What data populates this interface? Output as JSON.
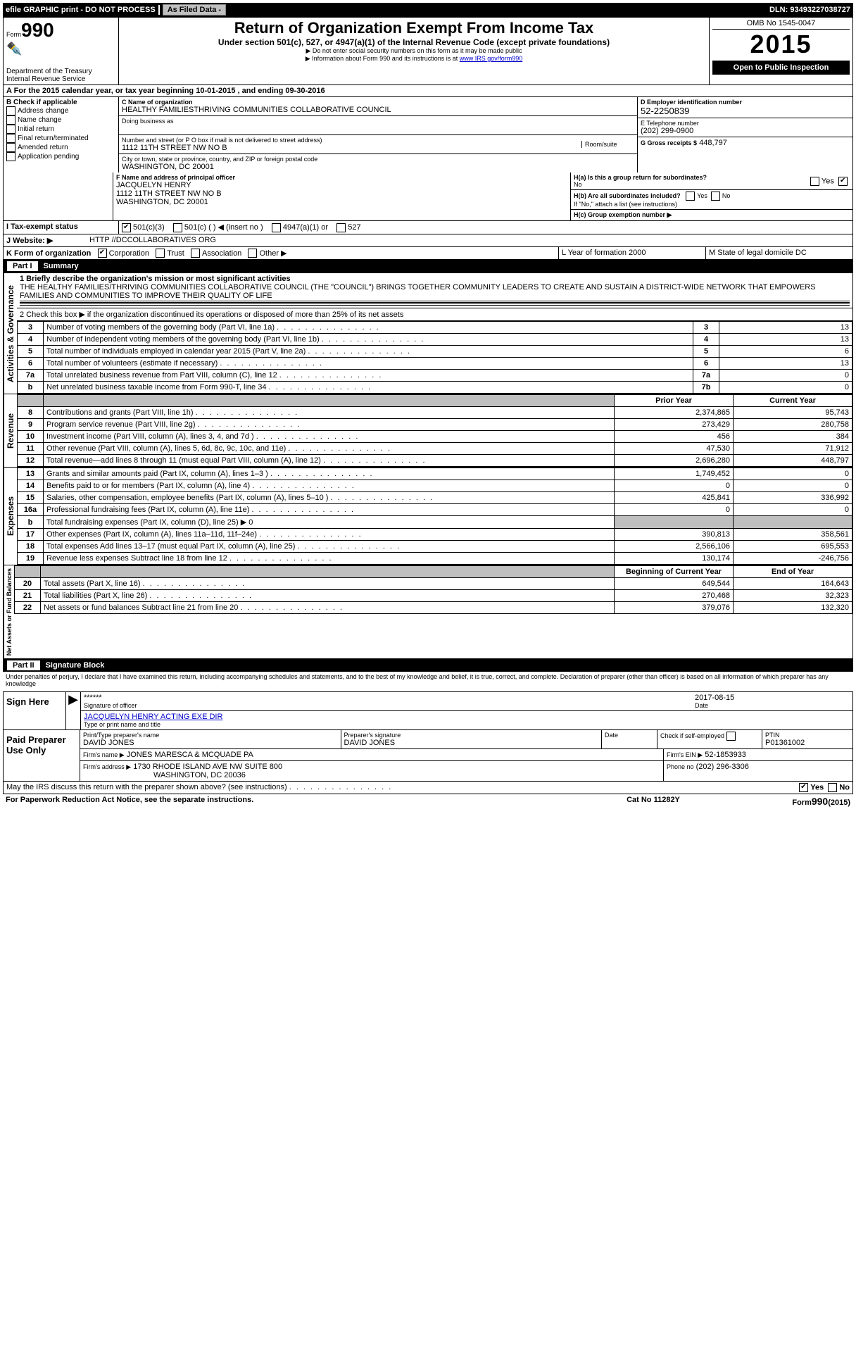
{
  "topbar": {
    "efile": "efile GRAPHIC print - DO NOT PROCESS",
    "asfiled": "As Filed Data -",
    "dln_label": "DLN:",
    "dln": "93493227038727"
  },
  "header": {
    "form_label": "Form",
    "form_no": "990",
    "dept1": "Department of the Treasury",
    "dept2": "Internal Revenue Service",
    "title": "Return of Organization Exempt From Income Tax",
    "subtitle": "Under section 501(c), 527, or 4947(a)(1) of the Internal Revenue Code (except private foundations)",
    "note1": "▶ Do not enter social security numbers on this form as it may be made public",
    "note2_pre": "▶ Information about Form 990 and its instructions is at ",
    "note2_link": "www IRS gov/form990",
    "omb": "OMB No 1545-0047",
    "year": "2015",
    "open": "Open to Public Inspection"
  },
  "A": {
    "text_pre": "A  For the 2015 calendar year, or tax year beginning ",
    "begin": "10-01-2015",
    "mid": " , and ending ",
    "end": "09-30-2016"
  },
  "B": {
    "header": "B Check if applicable",
    "items": [
      "Address change",
      "Name change",
      "Initial return",
      "Final return/terminated",
      "Amended return",
      "Application pending"
    ]
  },
  "C": {
    "name_label": "C Name of organization",
    "name": "HEALTHY FAMILIESTHRIVING COMMUNITIES COLLABORATIVE COUNCIL",
    "dba_label": "Doing business as",
    "addr_label": "Number and street (or P O box if mail is not delivered to street address)",
    "room_label": "Room/suite",
    "addr": "1112 11TH STREET NW NO B",
    "city_label": "City or town, state or province, country, and ZIP or foreign postal code",
    "city": "WASHINGTON, DC 20001"
  },
  "D": {
    "label": "D Employer identification number",
    "value": "52-2250839"
  },
  "E": {
    "label": "E Telephone number",
    "value": "(202) 299-0900"
  },
  "G": {
    "label": "G Gross receipts $",
    "value": "448,797"
  },
  "F": {
    "label": "F Name and address of principal officer",
    "name": "JACQUELYN HENRY",
    "addr1": "1112 11TH STREET NW NO B",
    "addr2": "WASHINGTON, DC 20001"
  },
  "H": {
    "a": "H(a) Is this a group return for subordinates?",
    "a_no": "No",
    "a_yes": "Yes",
    "b": "H(b) Are all subordinates included?",
    "b_yes": "Yes",
    "b_no": "No",
    "b_note": "If \"No,\" attach a list (see instructions)",
    "c": "H(c)  Group exemption number ▶"
  },
  "I": {
    "label": "I  Tax-exempt status",
    "c501c3": "501(c)(3)",
    "c501c": "501(c) (  ) ◀ (insert no )",
    "c4947": "4947(a)(1) or",
    "c527": "527"
  },
  "J": {
    "label": "J  Website: ▶",
    "value": "HTTP //DCCOLLABORATIVES ORG"
  },
  "K": {
    "label": "K Form of organization",
    "corp": "Corporation",
    "trust": "Trust",
    "assoc": "Association",
    "other": "Other ▶"
  },
  "L": {
    "label": "L Year of formation  2000"
  },
  "M": {
    "label": "M State of legal domicile  DC"
  },
  "partI": {
    "title": "Part I",
    "summary": "Summary",
    "line1": "1 Briefly describe the organization's mission or most significant activities",
    "mission": "THE HEALTHY FAMILIES/THRIVING COMMUNITIES COLLABORATIVE COUNCIL (THE \"COUNCIL\") BRINGS TOGETHER COMMUNITY LEADERS TO CREATE AND SUSTAIN A DISTRICT-WIDE NETWORK THAT EMPOWERS FAMILIES AND COMMUNITIES TO IMPROVE THEIR QUALITY OF LIFE",
    "line2": "2 Check this box ▶   if the organization discontinued its operations or disposed of more than 25% of its net assets",
    "gov_label": "Activities & Governance",
    "rev_label": "Revenue",
    "exp_label": "Expenses",
    "net_label": "Net Assets or Fund Balances",
    "prior": "Prior Year",
    "current": "Current Year",
    "begin": "Beginning of Current Year",
    "end_year": "End of Year",
    "rows_top": [
      {
        "n": "3",
        "t": "Number of voting members of the governing body (Part VI, line 1a)",
        "box": "3",
        "v": "13"
      },
      {
        "n": "4",
        "t": "Number of independent voting members of the governing body (Part VI, line 1b)",
        "box": "4",
        "v": "13"
      },
      {
        "n": "5",
        "t": "Total number of individuals employed in calendar year 2015 (Part V, line 2a)",
        "box": "5",
        "v": "6"
      },
      {
        "n": "6",
        "t": "Total number of volunteers (estimate if necessary)",
        "box": "6",
        "v": "13"
      },
      {
        "n": "7a",
        "t": "Total unrelated business revenue from Part VIII, column (C), line 12",
        "box": "7a",
        "v": "0"
      },
      {
        "n": "b",
        "t": "Net unrelated business taxable income from Form 990-T, line 34",
        "box": "7b",
        "v": "0"
      }
    ],
    "rev_rows": [
      {
        "n": "8",
        "t": "Contributions and grants (Part VIII, line 1h)",
        "p": "2,374,865",
        "c": "95,743"
      },
      {
        "n": "9",
        "t": "Program service revenue (Part VIII, line 2g)",
        "p": "273,429",
        "c": "280,758"
      },
      {
        "n": "10",
        "t": "Investment income (Part VIII, column (A), lines 3, 4, and 7d )",
        "p": "456",
        "c": "384"
      },
      {
        "n": "11",
        "t": "Other revenue (Part VIII, column (A), lines 5, 6d, 8c, 9c, 10c, and 11e)",
        "p": "47,530",
        "c": "71,912"
      },
      {
        "n": "12",
        "t": "Total revenue—add lines 8 through 11 (must equal Part VIII, column (A), line 12)",
        "p": "2,696,280",
        "c": "448,797"
      }
    ],
    "exp_rows": [
      {
        "n": "13",
        "t": "Grants and similar amounts paid (Part IX, column (A), lines 1–3 )",
        "p": "1,749,452",
        "c": "0"
      },
      {
        "n": "14",
        "t": "Benefits paid to or for members (Part IX, column (A), line 4)",
        "p": "0",
        "c": "0"
      },
      {
        "n": "15",
        "t": "Salaries, other compensation, employee benefits (Part IX, column (A), lines 5–10 )",
        "p": "425,841",
        "c": "336,992"
      },
      {
        "n": "16a",
        "t": "Professional fundraising fees (Part IX, column (A), line 11e)",
        "p": "0",
        "c": "0"
      },
      {
        "n": "b",
        "t": "Total fundraising expenses (Part IX, column (D), line 25) ▶ 0",
        "p": "",
        "c": "",
        "shaded": true
      },
      {
        "n": "17",
        "t": "Other expenses (Part IX, column (A), lines 11a–11d, 11f–24e)",
        "p": "390,813",
        "c": "358,561"
      },
      {
        "n": "18",
        "t": "Total expenses Add lines 13–17 (must equal Part IX, column (A), line 25)",
        "p": "2,566,106",
        "c": "695,553"
      },
      {
        "n": "19",
        "t": "Revenue less expenses Subtract line 18 from line 12",
        "p": "130,174",
        "c": "-246,756"
      }
    ],
    "net_rows": [
      {
        "n": "20",
        "t": "Total assets (Part X, line 16)",
        "p": "649,544",
        "c": "164,643"
      },
      {
        "n": "21",
        "t": "Total liabilities (Part X, line 26)",
        "p": "270,468",
        "c": "32,323"
      },
      {
        "n": "22",
        "t": "Net assets or fund balances Subtract line 21 from line 20",
        "p": "379,076",
        "c": "132,320"
      }
    ]
  },
  "partII": {
    "title": "Part II",
    "label": "Signature Block",
    "decl": "Under penalties of perjury, I declare that I have examined this return, including accompanying schedules and statements, and to the best of my knowledge and belief, it is true, correct, and complete. Declaration of preparer (other than officer) is based on all information of which preparer has any knowledge",
    "sign_here": "Sign Here",
    "stars": "******",
    "sig_officer": "Signature of officer",
    "date_label": "Date",
    "sig_date": "2017-08-15",
    "officer_name": "JACQUELYN HENRY ACTING EXE  DIR",
    "officer_sub": "Type or print name and title",
    "paid": "Paid Preparer Use Only",
    "prep_name_label": "Print/Type preparer's name",
    "prep_name": "DAVID JONES",
    "prep_sig_label": "Preparer's signature",
    "prep_sig": "DAVID JONES",
    "check_self": "Check        if self-employed",
    "ptin_label": "PTIN",
    "ptin": "P01361002",
    "firm_name_label": "Firm's name    ▶",
    "firm_name": "JONES MARESCA & MCQUADE PA",
    "firm_ein_label": "Firm's EIN ▶",
    "firm_ein": "52-1853933",
    "firm_addr_label": "Firm's address ▶",
    "firm_addr1": "1730 RHODE ISLAND AVE NW SUITE 800",
    "firm_addr2": "WASHINGTON, DC  20036",
    "phone_label": "Phone no",
    "phone": "(202) 296-3306",
    "discuss": "May the IRS discuss this return with the preparer shown above? (see instructions)",
    "yes": "Yes",
    "no": "No",
    "paperwork": "For Paperwork Reduction Act Notice, see the separate instructions.",
    "cat": "Cat No 11282Y",
    "formno": "Form 990 (2015)"
  }
}
